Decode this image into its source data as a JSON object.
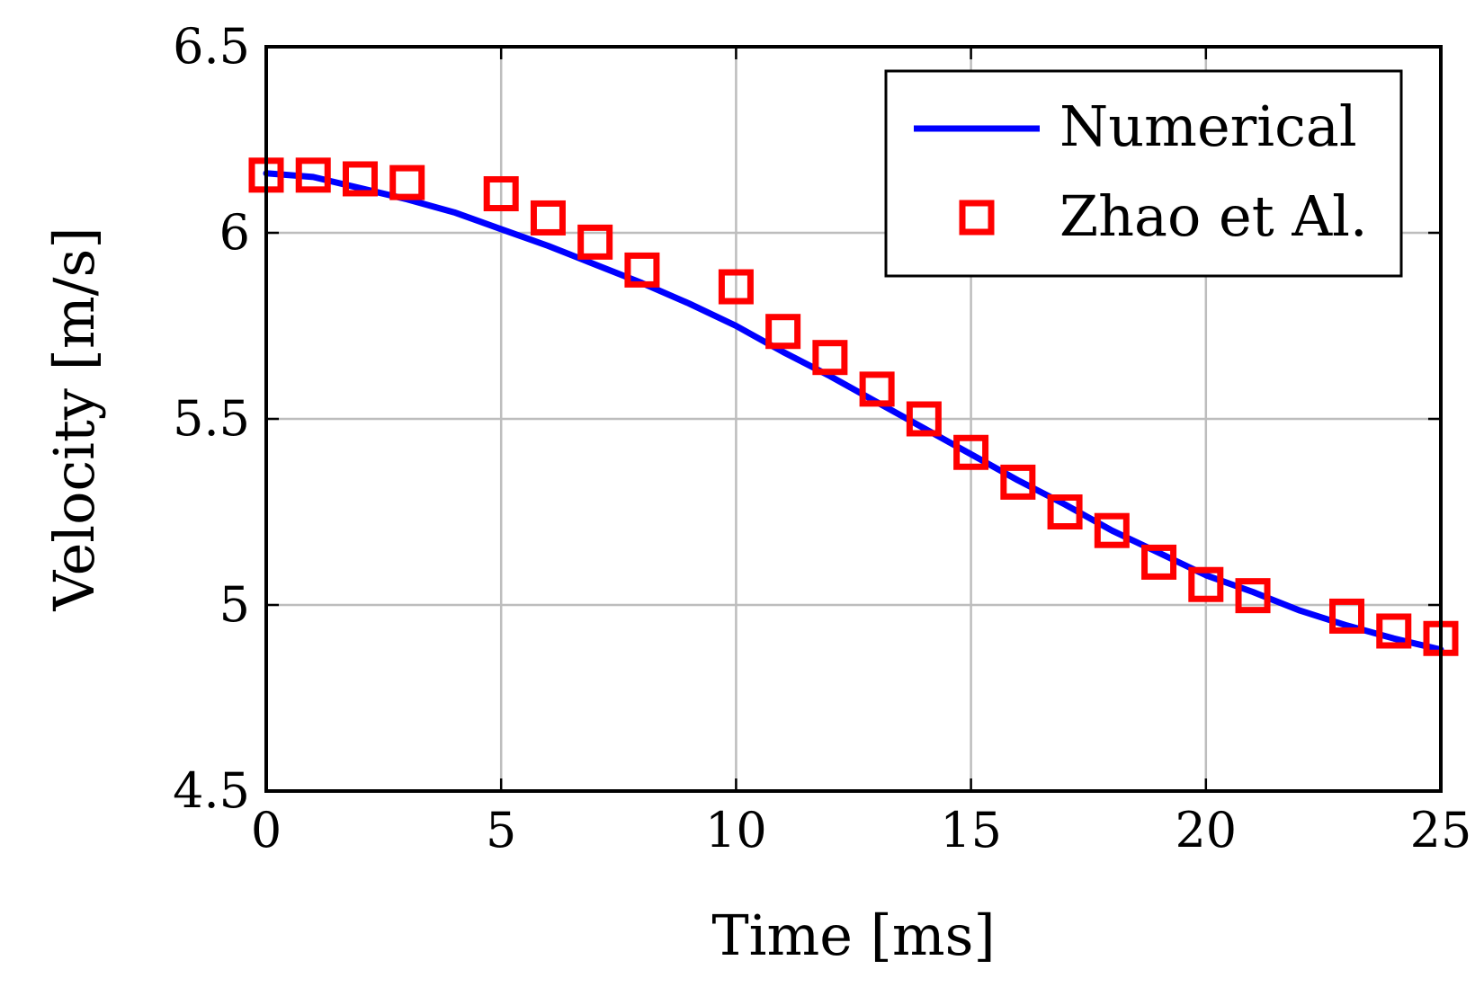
{
  "chart_data": {
    "type": "line",
    "xlabel": "Time [ms]",
    "ylabel": "Velocity [m/s]",
    "xlim": [
      0,
      25
    ],
    "ylim": [
      4.5,
      6.5
    ],
    "xticks": [
      "0",
      "5",
      "10",
      "15",
      "20",
      "25"
    ],
    "yticks": [
      "4.5",
      "5",
      "5.5",
      "6",
      "6.5"
    ],
    "grid": true,
    "legend_position": "top-right",
    "series": [
      {
        "name": "Numerical",
        "kind": "line",
        "color": "#0000ff",
        "x": [
          0,
          1,
          2,
          3,
          4,
          5,
          6,
          7,
          8,
          9,
          10,
          11,
          12,
          13,
          14,
          15,
          16,
          17,
          18,
          19,
          20,
          21,
          22,
          23,
          24,
          25
        ],
        "y": [
          6.16,
          6.15,
          6.12,
          6.09,
          6.055,
          6.01,
          5.965,
          5.915,
          5.865,
          5.81,
          5.75,
          5.68,
          5.615,
          5.545,
          5.475,
          5.405,
          5.335,
          5.27,
          5.2,
          5.14,
          5.08,
          5.035,
          4.985,
          4.945,
          4.91,
          4.88
        ]
      },
      {
        "name": "Zhao et Al.",
        "kind": "markers",
        "marker": "square",
        "color": "#ff0000",
        "x": [
          0,
          1,
          2,
          3,
          5,
          6,
          7,
          8,
          10,
          11,
          12,
          13,
          14,
          15,
          16,
          17,
          18,
          19,
          20,
          21,
          23,
          24,
          25
        ],
        "y": [
          6.155,
          6.155,
          6.145,
          6.135,
          6.105,
          6.04,
          5.975,
          5.9,
          5.855,
          5.735,
          5.665,
          5.58,
          5.5,
          5.41,
          5.33,
          5.25,
          5.2,
          5.115,
          5.055,
          5.025,
          4.97,
          4.93,
          4.91
        ]
      }
    ]
  }
}
